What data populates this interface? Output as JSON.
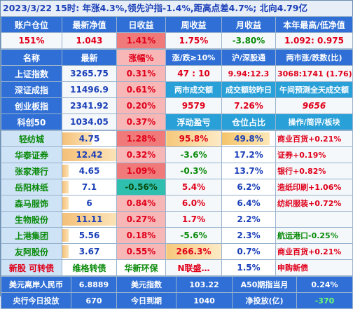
{
  "title": "2023/3/22  15时: 年涨4.3%,领先沪指-1.4%,距高点差4.7%; 北向4.79亿",
  "account_header": [
    "账户仓位",
    "最新净值",
    "日收益",
    "周收益",
    "月收益",
    "本年最高/低净值"
  ],
  "account_row": [
    "151%",
    "1.043",
    "1.41%",
    "1.75%",
    "-3.80%",
    "1.092: 0.975"
  ],
  "index_header": [
    "名称",
    "最新",
    "涨幅%",
    "涨/跌≥10%",
    "沪/深股通",
    "两市涨/跌数(比)"
  ],
  "indices": [
    {
      "name": "上证指数",
      "last": "3265.75",
      "chg": "0.31%",
      "c4": "47 : 10",
      "c5": "9.94:12.3",
      "c6": "3068:1741 (1.76)"
    },
    {
      "name": "深证成指",
      "last": "11496.9",
      "chg": "0.61%",
      "c4": "两市成交额",
      "c5": "成交额较昨日",
      "c6": "午间预测全天成交额"
    },
    {
      "name": "创业板指",
      "last": "2341.92",
      "chg": "0.20%",
      "c4": "9579",
      "c5": "7.26%",
      "c6": "9656"
    },
    {
      "name": "科创50",
      "last": "1034.05",
      "chg": "0.37%",
      "c4": "浮动盈亏",
      "c5": "仓位占比",
      "c6": "操作/简评/板块"
    }
  ],
  "stocks": [
    {
      "name": "轻纺城",
      "last": "4.75",
      "chg": "1.28%",
      "pnl": "95.8%",
      "pos": "49.8%",
      "note": "商业百货+0.21%",
      "bar": 0.55,
      "posbar": 0.9
    },
    {
      "name": "华泰证券",
      "last": "12.42",
      "chg": "0.32%",
      "pnl": "-3.6%",
      "pos": "17.2%",
      "note": "证券+0.19%",
      "bar": 1.0,
      "posbar": 0
    },
    {
      "name": "张家港行",
      "last": "4.65",
      "chg": "1.09%",
      "pnl": "-0.3%",
      "pos": "13.7%",
      "note": "银行+0.82%",
      "bar": 0.12,
      "posbar": 0
    },
    {
      "name": "岳阳林纸",
      "last": "7.1",
      "chg": "-0.56%",
      "pnl": "5.4%",
      "pos": "6.2%",
      "note": "造纸印刷+1.06%",
      "bar": 0.12,
      "posbar": 0
    },
    {
      "name": "森马服饰",
      "last": "6",
      "chg": "0.84%",
      "pnl": "6.0%",
      "pos": "6.4%",
      "note": "纺织服装+0.72%",
      "bar": 0.12,
      "posbar": 0
    },
    {
      "name": "生物股份",
      "last": "11.11",
      "chg": "0.27%",
      "pnl": "1.7%",
      "pos": "2.2%",
      "note": "",
      "bar": 1.0,
      "posbar": 0
    },
    {
      "name": "上港集团",
      "last": "5.56",
      "chg": "0.18%",
      "pnl": "-5.6%",
      "pos": "2.3%",
      "note": "航运港口-0.25%",
      "bar": 0.12,
      "posbar": 0
    },
    {
      "name": "友阿股份",
      "last": "3.67",
      "chg": "0.55%",
      "pnl": "266.3%",
      "pos": "0.7%",
      "note": "商业百货+0.21%",
      "bar": 0.12,
      "posbar": 0
    },
    {
      "name": "新股 可转债",
      "last": "维格转债",
      "chg": "华新环保",
      "pnl": "N联盛…",
      "pos": "1.5%",
      "note": "申购新债",
      "bar": 0,
      "posbar": 0
    }
  ],
  "footer1": {
    "l1": "美元离岸人民币",
    "v1": "6.8889",
    "l2": "美元指数",
    "v2": "103.22",
    "l3": "A50期指当月",
    "v3": "0.24%"
  },
  "footer2": {
    "l1": "央行今日投放",
    "v1": "670",
    "l2": "今日到期",
    "v2": "1040",
    "l3": "净投放(亿)",
    "v3": "-370"
  }
}
